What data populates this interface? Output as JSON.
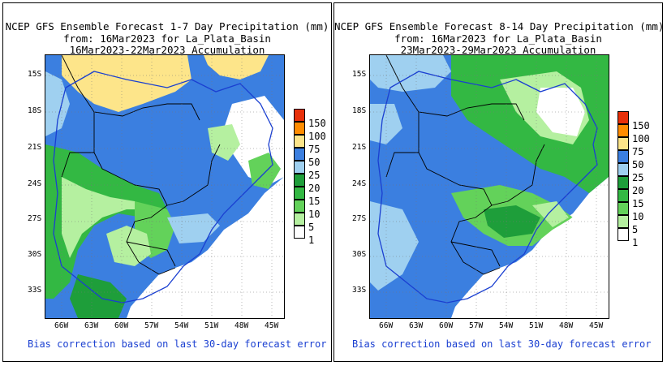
{
  "panels": [
    {
      "title1": "NCEP GFS Ensemble Forecast 1-7 Day Precipitation (mm)",
      "title2": "from: 16Mar2023  for La_Plata_Basin",
      "title3": "16Mar2023-22Mar2023 Accumulation",
      "footer": "Bias correction based on last 30-day forecast error"
    },
    {
      "title1": "NCEP GFS Ensemble Forecast 8-14 Day Precipitation (mm)",
      "title2": "from: 16Mar2023  for La_Plata_Basin",
      "title3": "23Mar2023-29Mar2023 Accumulation",
      "footer": "Bias correction based on last 30-day forecast error"
    }
  ],
  "lat_labels": [
    "15S",
    "18S",
    "21S",
    "24S",
    "27S",
    "30S",
    "33S"
  ],
  "lon_labels": [
    "66W",
    "63W",
    "60W",
    "57W",
    "54W",
    "51W",
    "48W",
    "45W"
  ],
  "legend": {
    "levels": [
      "150",
      "100",
      "75",
      "50",
      "25",
      "20",
      "15",
      "10",
      "5",
      "1"
    ],
    "colors": [
      "#e8300a",
      "#ff8c00",
      "#fde58a",
      "#3b7fe0",
      "#9fd0f0",
      "#1e9e3a",
      "#33b843",
      "#63d25a",
      "#b5f0a0",
      "#ffffff"
    ]
  },
  "colors": {
    "ocean": "#ffffff",
    "basin_outline": "#1a3fd1",
    "country_border": "#000000"
  }
}
